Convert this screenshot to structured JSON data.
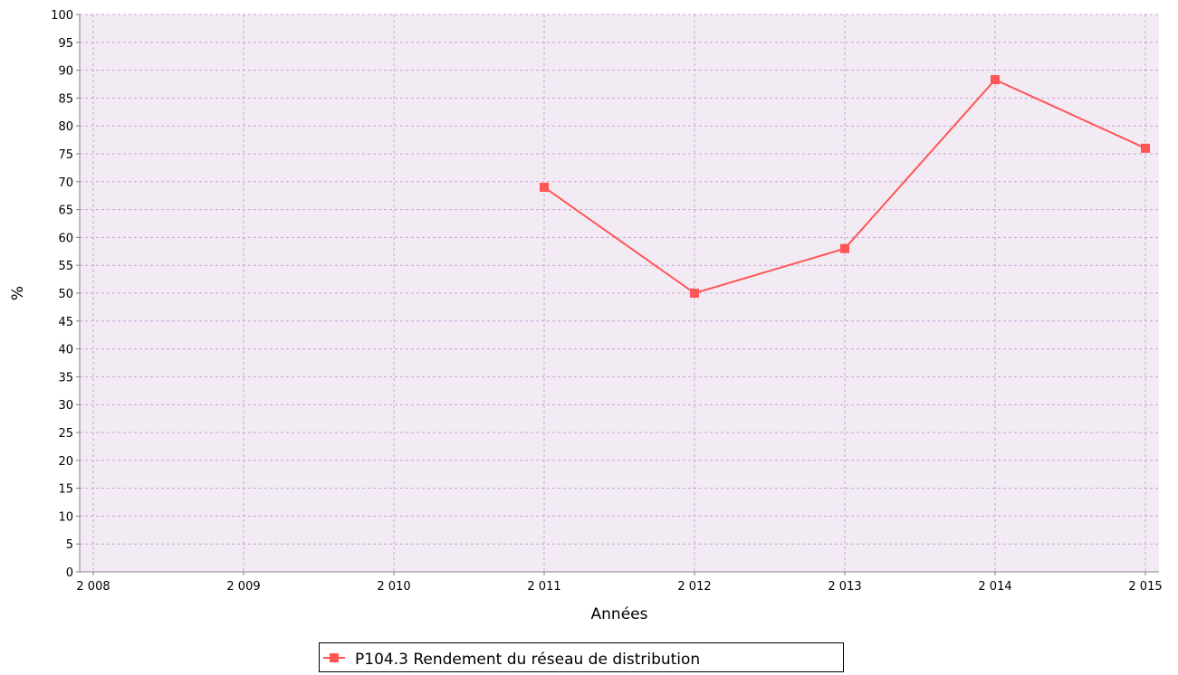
{
  "chart_data": {
    "type": "line",
    "xlabel": "Années",
    "ylabel": "%",
    "xlim": [
      2008,
      2015
    ],
    "ylim": [
      0,
      100
    ],
    "x_ticks": [
      {
        "value": 2008,
        "label": "2 008"
      },
      {
        "value": 2009,
        "label": "2 009"
      },
      {
        "value": 2010,
        "label": "2 010"
      },
      {
        "value": 2011,
        "label": "2 011"
      },
      {
        "value": 2012,
        "label": "2 012"
      },
      {
        "value": 2013,
        "label": "2 013"
      },
      {
        "value": 2014,
        "label": "2 014"
      },
      {
        "value": 2015,
        "label": "2 015"
      }
    ],
    "y_ticks": [
      0,
      5,
      10,
      15,
      20,
      25,
      30,
      35,
      40,
      45,
      50,
      55,
      60,
      65,
      70,
      75,
      80,
      85,
      90,
      95,
      100
    ],
    "grid": true,
    "legend_position": "bottom",
    "series": [
      {
        "name": "P104.3 Rendement du réseau de distribution",
        "color": "#ff5555",
        "marker": "square",
        "x": [
          2011,
          2012,
          2013,
          2014,
          2015
        ],
        "y": [
          69,
          50,
          58,
          88.3,
          76
        ]
      }
    ],
    "colors": {
      "plot_background": "#f3ebf3",
      "grid": "#c9a0d6",
      "axis": "#808080"
    }
  }
}
